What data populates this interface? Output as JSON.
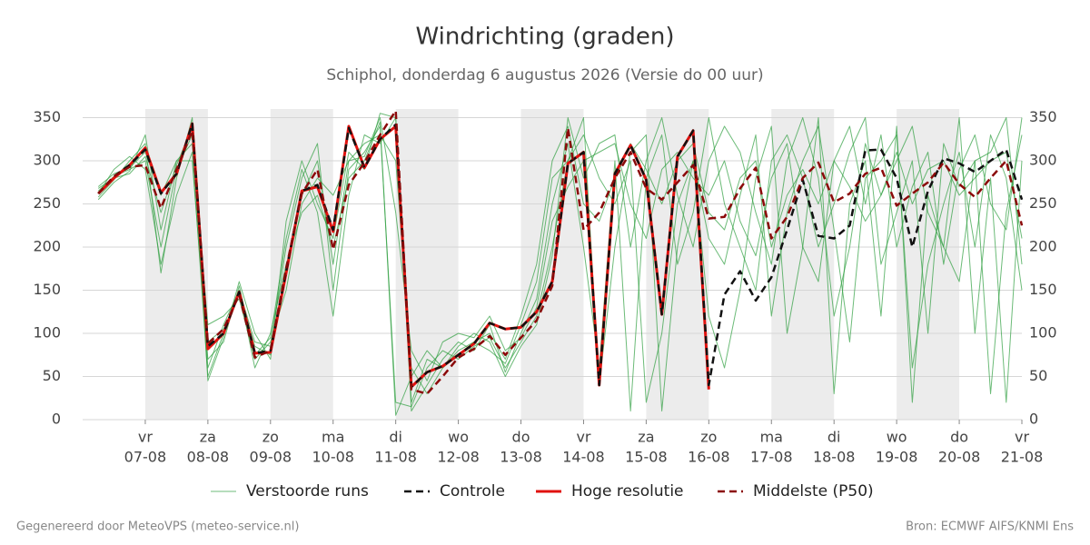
{
  "chart_data": {
    "type": "line",
    "title": "Windrichting (graden)",
    "subtitle": "Schiphol, donderdag  6 augustus 2026 (Versie do 00 uur)",
    "footer_left": "Gegenereerd door MeteoVPS (meteo-service.nl)",
    "footer_right": "Bron: ECMWF AIFS/KNMI Ens",
    "x": [
      "2026-08-06T06:00",
      "2026-08-06T12:00",
      "2026-08-06T18:00",
      "2026-08-07T00:00",
      "2026-08-07T06:00",
      "2026-08-07T12:00",
      "2026-08-07T18:00",
      "2026-08-08T00:00",
      "2026-08-08T06:00",
      "2026-08-08T12:00",
      "2026-08-08T18:00",
      "2026-08-09T00:00",
      "2026-08-09T06:00",
      "2026-08-09T12:00",
      "2026-08-09T18:00",
      "2026-08-10T00:00",
      "2026-08-10T06:00",
      "2026-08-10T12:00",
      "2026-08-10T18:00",
      "2026-08-11T00:00",
      "2026-08-11T06:00",
      "2026-08-11T12:00",
      "2026-08-11T18:00",
      "2026-08-12T00:00",
      "2026-08-12T06:00",
      "2026-08-12T12:00",
      "2026-08-12T18:00",
      "2026-08-13T00:00",
      "2026-08-13T06:00",
      "2026-08-13T12:00",
      "2026-08-13T18:00",
      "2026-08-14T00:00",
      "2026-08-14T06:00",
      "2026-08-14T12:00",
      "2026-08-14T18:00",
      "2026-08-15T00:00",
      "2026-08-15T06:00",
      "2026-08-15T12:00",
      "2026-08-15T18:00",
      "2026-08-16T00:00",
      "2026-08-16T06:00",
      "2026-08-16T12:00",
      "2026-08-16T18:00",
      "2026-08-17T00:00",
      "2026-08-17T06:00",
      "2026-08-17T12:00",
      "2026-08-17T18:00",
      "2026-08-18T00:00",
      "2026-08-18T06:00",
      "2026-08-18T12:00",
      "2026-08-18T18:00",
      "2026-08-19T00:00",
      "2026-08-19T06:00",
      "2026-08-19T12:00",
      "2026-08-19T18:00",
      "2026-08-20T00:00",
      "2026-08-20T06:00",
      "2026-08-20T12:00",
      "2026-08-20T18:00",
      "2026-08-21T00:00"
    ],
    "xlim": [
      "2026-08-06T00:00",
      "2026-08-21T00:00"
    ],
    "xticks": [
      {
        "value": "2026-08-07T00:00",
        "label": [
          "vr",
          "07-08"
        ]
      },
      {
        "value": "2026-08-08T00:00",
        "label": [
          "za",
          "08-08"
        ]
      },
      {
        "value": "2026-08-09T00:00",
        "label": [
          "zo",
          "09-08"
        ]
      },
      {
        "value": "2026-08-10T00:00",
        "label": [
          "ma",
          "10-08"
        ]
      },
      {
        "value": "2026-08-11T00:00",
        "label": [
          "di",
          "11-08"
        ]
      },
      {
        "value": "2026-08-12T00:00",
        "label": [
          "wo",
          "12-08"
        ]
      },
      {
        "value": "2026-08-13T00:00",
        "label": [
          "do",
          "13-08"
        ]
      },
      {
        "value": "2026-08-14T00:00",
        "label": [
          "vr",
          "14-08"
        ]
      },
      {
        "value": "2026-08-15T00:00",
        "label": [
          "za",
          "15-08"
        ]
      },
      {
        "value": "2026-08-16T00:00",
        "label": [
          "zo",
          "16-08"
        ]
      },
      {
        "value": "2026-08-17T00:00",
        "label": [
          "ma",
          "17-08"
        ]
      },
      {
        "value": "2026-08-18T00:00",
        "label": [
          "di",
          "18-08"
        ]
      },
      {
        "value": "2026-08-19T00:00",
        "label": [
          "wo",
          "19-08"
        ]
      },
      {
        "value": "2026-08-20T00:00",
        "label": [
          "do",
          "20-08"
        ]
      },
      {
        "value": "2026-08-21T00:00",
        "label": [
          "vr",
          "21-08"
        ]
      }
    ],
    "bands": [
      [
        "2026-08-07T00:00",
        "2026-08-08T00:00"
      ],
      [
        "2026-08-09T00:00",
        "2026-08-10T00:00"
      ],
      [
        "2026-08-11T00:00",
        "2026-08-12T00:00"
      ],
      [
        "2026-08-13T00:00",
        "2026-08-14T00:00"
      ],
      [
        "2026-08-15T00:00",
        "2026-08-16T00:00"
      ],
      [
        "2026-08-17T00:00",
        "2026-08-18T00:00"
      ],
      [
        "2026-08-19T00:00",
        "2026-08-20T00:00"
      ]
    ],
    "ylim": [
      0,
      360
    ],
    "yticks": [
      0,
      50,
      100,
      150,
      200,
      250,
      300,
      350
    ],
    "grid": true,
    "ensemble_name": "Verstoorde runs",
    "ensemble_color": "#2e9e3e",
    "ensemble": [
      [
        265,
        282,
        290,
        300,
        200,
        290,
        330,
        60,
        110,
        150,
        90,
        85,
        200,
        280,
        320,
        150,
        290,
        310,
        340,
        20,
        15,
        60,
        80,
        70,
        85,
        95,
        60,
        90,
        120,
        200,
        300,
        330,
        280,
        250,
        300,
        20,
        100,
        250,
        300,
        210,
        180,
        260,
        330,
        120,
        240,
        300,
        340,
        220,
        90,
        280,
        300,
        330,
        60,
        180,
        250,
        310,
        200,
        330,
        280,
        150
      ],
      [
        258,
        278,
        300,
        320,
        170,
        280,
        350,
        45,
        95,
        160,
        100,
        70,
        230,
        300,
        250,
        210,
        310,
        290,
        355,
        350,
        10,
        40,
        70,
        90,
        80,
        110,
        55,
        100,
        140,
        250,
        320,
        200,
        60,
        300,
        10,
        280,
        330,
        180,
        240,
        350,
        250,
        200,
        150,
        300,
        330,
        280,
        200,
        250,
        310,
        350,
        180,
        240,
        300,
        100,
        320,
        270,
        300,
        30,
        240,
        330
      ],
      [
        270,
        285,
        292,
        310,
        260,
        300,
        320,
        110,
        120,
        140,
        70,
        90,
        150,
        250,
        280,
        260,
        300,
        320,
        330,
        300,
        60,
        30,
        60,
        80,
        90,
        100,
        70,
        120,
        180,
        300,
        340,
        250,
        230,
        280,
        320,
        290,
        250,
        300,
        320,
        240,
        220,
        280,
        300,
        200,
        260,
        290,
        250,
        300,
        270,
        230,
        260,
        310,
        250,
        290,
        300,
        260,
        280,
        300,
        310,
        210
      ],
      [
        262,
        290,
        305,
        290,
        180,
        260,
        310,
        50,
        100,
        150,
        60,
        100,
        180,
        240,
        260,
        200,
        280,
        300,
        345,
        5,
        50,
        80,
        60,
        75,
        90,
        80,
        65,
        110,
        160,
        280,
        300,
        350,
        40,
        200,
        310,
        330,
        10,
        200,
        300,
        120,
        60,
        150,
        280,
        340,
        100,
        200,
        350,
        30,
        250,
        300,
        120,
        340,
        20,
        260,
        200,
        350,
        100,
        280,
        20,
        300
      ],
      [
        268,
        280,
        285,
        305,
        240,
        295,
        340,
        90,
        105,
        145,
        85,
        75,
        170,
        260,
        300,
        180,
        300,
        305,
        350,
        240,
        80,
        45,
        90,
        100,
        95,
        120,
        80,
        95,
        130,
        230,
        270,
        300,
        310,
        320,
        250,
        210,
        290,
        310,
        280,
        260,
        300,
        230,
        190,
        280,
        320,
        200,
        160,
        300,
        340,
        250,
        330,
        200,
        270,
        310,
        180,
        290,
        330,
        250,
        220,
        350
      ],
      [
        255,
        275,
        288,
        330,
        220,
        300,
        300,
        70,
        90,
        155,
        75,
        95,
        210,
        290,
        240,
        120,
        260,
        330,
        320,
        350,
        20,
        70,
        60,
        85,
        100,
        90,
        50,
        85,
        110,
        190,
        350,
        280,
        320,
        330,
        200,
        300,
        350,
        260,
        200,
        300,
        340,
        310,
        240,
        180,
        300,
        350,
        280,
        120,
        200,
        320,
        260,
        300,
        340,
        240,
        200,
        160,
        300,
        310,
        350,
        180
      ]
    ],
    "series": [
      {
        "name": "Controle",
        "color": "#111111",
        "dash": true,
        "values": [
          262,
          282,
          295,
          313,
          262,
          285,
          343,
          85,
          100,
          148,
          77,
          80,
          172,
          265,
          272,
          220,
          338,
          292,
          325,
          342,
          38,
          55,
          62,
          75,
          88,
          112,
          105,
          107,
          125,
          160,
          297,
          310,
          40,
          285,
          318,
          278,
          122,
          305,
          335,
          40,
          145,
          172,
          138,
          165,
          220,
          278,
          213,
          210,
          225,
          312,
          313,
          280,
          200,
          265,
          303,
          297,
          287,
          300,
          313,
          255
        ]
      },
      {
        "name": "Hoge resolutie",
        "color": "#e0120f",
        "dash": false,
        "values": [
          262,
          280,
          295,
          315,
          263,
          285,
          343,
          82,
          100,
          148,
          77,
          78,
          170,
          265,
          270,
          218,
          340,
          292,
          325,
          340,
          38,
          55,
          62,
          75,
          88,
          112,
          105,
          107,
          125,
          160,
          297,
          310,
          40,
          285,
          318,
          278,
          122,
          305,
          335,
          35,
          null,
          null,
          null,
          null,
          null,
          null,
          null,
          null,
          null,
          null,
          null,
          null,
          null,
          null,
          null,
          null,
          null,
          null,
          null,
          null
        ]
      },
      {
        "name": "Middelste (P50)",
        "color": "#8b0a0a",
        "dash": true,
        "values": [
          262,
          282,
          293,
          295,
          245,
          290,
          335,
          88,
          105,
          145,
          72,
          80,
          175,
          262,
          290,
          197,
          272,
          298,
          330,
          358,
          35,
          30,
          50,
          72,
          82,
          97,
          75,
          95,
          115,
          155,
          338,
          220,
          240,
          280,
          310,
          268,
          255,
          275,
          295,
          233,
          235,
          268,
          292,
          210,
          235,
          280,
          298,
          252,
          262,
          285,
          292,
          248,
          262,
          275,
          298,
          273,
          258,
          280,
          300,
          225
        ]
      }
    ]
  }
}
